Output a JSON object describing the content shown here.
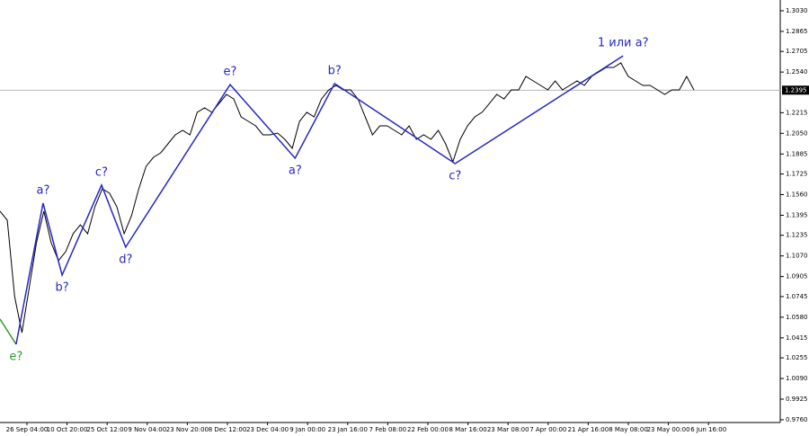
{
  "chart_data": {
    "type": "line",
    "series": [
      {
        "color": "#000000",
        "values": [
          1.1427,
          1.1355,
          1.0744,
          1.0457,
          1.0816,
          1.1176,
          1.1427,
          1.1176,
          1.1032,
          1.1104,
          1.1247,
          1.1319,
          1.1247,
          1.1463,
          1.1607,
          1.1571,
          1.1463,
          1.1247,
          1.1391,
          1.1607,
          1.1786,
          1.1858,
          1.1894,
          1.1966,
          1.2038,
          1.2074,
          1.2038,
          1.2218,
          1.2254,
          1.2218,
          1.2289,
          1.2361,
          1.2325,
          1.2182,
          1.2146,
          1.211,
          1.2038,
          1.2038,
          1.2052,
          1.2002,
          1.193,
          1.2146,
          1.2218,
          1.2182,
          1.2325,
          1.2397,
          1.2433,
          1.2397,
          1.2397,
          1.2325,
          1.2182,
          1.2038,
          1.211,
          1.211,
          1.2074,
          1.2038,
          1.211,
          1.2002,
          1.2038,
          1.2002,
          1.2074,
          1.1966,
          1.1822,
          1.2002,
          1.211,
          1.2182,
          1.2218,
          1.2289,
          1.2361,
          1.2325,
          1.2397,
          1.2397,
          1.2505,
          1.2469,
          1.2433,
          1.2397,
          1.2469,
          1.2397,
          1.2433,
          1.2469,
          1.2433,
          1.2505,
          1.2541,
          1.2577,
          1.2577,
          1.2613,
          1.2505,
          1.2469,
          1.2433,
          1.2433,
          1.2397,
          1.2361,
          1.2397,
          1.2397,
          1.2505,
          1.2397
        ]
      }
    ],
    "waves": [
      {
        "color": "#2e9c2e",
        "x": [
          0,
          2.2
        ],
        "values": [
          1.0565,
          1.0363
        ],
        "labels": [
          null,
          "e?"
        ]
      },
      {
        "color": "#2626c8",
        "x": [
          2.2,
          5.9,
          8.5,
          13.9,
          17.2,
          31.5,
          40.4,
          45.8,
          62.3,
          85.3
        ],
        "values": [
          1.0363,
          1.1492,
          1.0917,
          1.1636,
          1.114,
          1.244,
          1.1851,
          1.2448,
          1.1808,
          1.267
        ],
        "labels": [
          null,
          "a?",
          "b?",
          "c?",
          "d?",
          "e?",
          "a?",
          "b?",
          "c?",
          "1 или a?"
        ]
      }
    ],
    "current_price": {
      "value": 1.2395,
      "label": "1.2395"
    },
    "ylim": [
      0.9738,
      1.3116
    ],
    "yticks": [
      {
        "value": 1.303,
        "label": "1.3030"
      },
      {
        "value": 1.2865,
        "label": "1.2865"
      },
      {
        "value": 1.2705,
        "label": "1.2705"
      },
      {
        "value": 1.254,
        "label": "1.2540"
      },
      {
        "value": 1.2215,
        "label": "1.2215"
      },
      {
        "value": 1.205,
        "label": "1.2050"
      },
      {
        "value": 1.1885,
        "label": "1.1885"
      },
      {
        "value": 1.1725,
        "label": "1.1725"
      },
      {
        "value": 1.156,
        "label": "1.1560"
      },
      {
        "value": 1.1395,
        "label": "1.1395"
      },
      {
        "value": 1.1235,
        "label": "1.1235"
      },
      {
        "value": 1.107,
        "label": "1.1070"
      },
      {
        "value": 1.0905,
        "label": "1.0905"
      },
      {
        "value": 1.0745,
        "label": "1.0745"
      },
      {
        "value": 1.058,
        "label": "1.0580"
      },
      {
        "value": 1.0415,
        "label": "1.0415"
      },
      {
        "value": 1.0255,
        "label": "1.0255"
      },
      {
        "value": 1.009,
        "label": "1.0090"
      },
      {
        "value": 0.9925,
        "label": "0.9925"
      },
      {
        "value": 0.976,
        "label": "0.9760"
      }
    ],
    "xticks": [
      "26 Sep 04:00",
      "10 Oct 20:00",
      "25 Oct 12:00",
      "9 Nov 04:00",
      "23 Nov 20:00",
      "8 Dec 12:00",
      "23 Dec 04:00",
      "9 Jan 00:00",
      "23 Jan 16:00",
      "7 Feb 08:00",
      "22 Feb 00:00",
      "8 Mar 16:00",
      "23 Mar 08:00",
      "7 Apr 00:00",
      "21 Apr 16:00",
      "8 May 08:00",
      "23 May 00:00",
      "6 Jun 16:00"
    ]
  }
}
